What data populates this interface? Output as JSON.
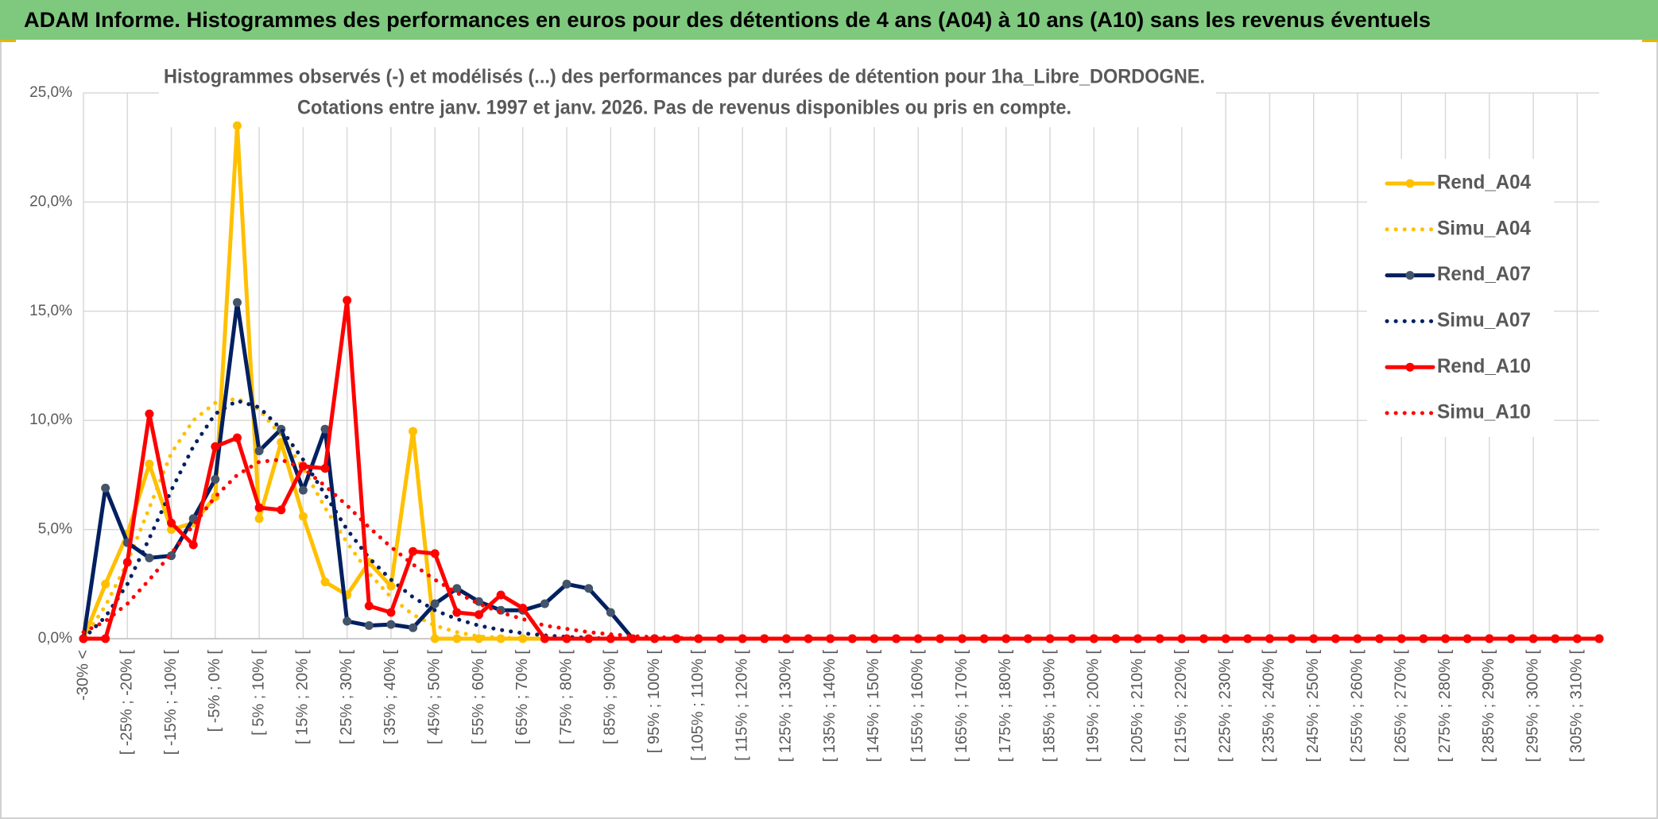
{
  "header": {
    "title": "ADAM Informe. Histogrammes des performances en euros pour des détentions de 4 ans (A04) à 10 ans (A10) sans les revenus éventuels"
  },
  "chart_data": {
    "type": "line",
    "title": "Histogrammes observés (-) et modélisés (...) des performances par durées de détention pour 1ha_Libre_DORDOGNE.",
    "subtitle": "Cotations entre janv. 1997 et janv. 2026. Pas de revenus disponibles ou pris en compte.",
    "categories": [
      "-30% <",
      null,
      "[ -25% ; -20% [",
      null,
      "[ -15% ; -10% [",
      null,
      "[ -5% ; 0% [",
      null,
      "[ 5% ; 10% [",
      null,
      "[ 15% ; 20% [",
      null,
      "[ 25% ; 30% [",
      null,
      "[ 35% ; 40% [",
      null,
      "[ 45% ; 50% [",
      null,
      "[ 55% ; 60% [",
      null,
      "[ 65% ; 70% [",
      null,
      "[ 75% ; 80% [",
      null,
      "[ 85% ; 90% [",
      null,
      "[ 95% ; 100% [",
      null,
      "[ 105% ; 110% [",
      null,
      "[ 115% ; 120% [",
      null,
      "[ 125% ; 130% [",
      null,
      "[ 135% ; 140% [",
      null,
      "[ 145% ; 150% [",
      null,
      "[ 155% ; 160% [",
      null,
      "[ 165% ; 170% [",
      null,
      "[ 175% ; 180% [",
      null,
      "[ 185% ; 190% [",
      null,
      "[ 195% ; 200% [",
      null,
      "[ 205% ; 210% [",
      null,
      "[ 215% ; 220% [",
      null,
      "[ 225% ; 230% [",
      null,
      "[ 235% ; 240% [",
      null,
      "[ 245% ; 250% [",
      null,
      "[ 255% ; 260% [",
      null,
      "[ 265% ; 270% [",
      null,
      "[ 275% ; 280% [",
      null,
      "[ 285% ; 290% [",
      null,
      "[ 295% ; 300% [",
      null,
      "[ 305% ; 310% [",
      null
    ],
    "series": [
      {
        "name": "Rend_A04",
        "color": "#ffc000",
        "style": "solid",
        "values": [
          0,
          2.5,
          4.8,
          8.0,
          5.0,
          5.3,
          6.5,
          23.5,
          5.5,
          9.0,
          5.6,
          2.6,
          2.0,
          3.5,
          2.4,
          9.5,
          0,
          0,
          0,
          0,
          0,
          0,
          0,
          0,
          0,
          0,
          0,
          0,
          0,
          0,
          0,
          0,
          0,
          0,
          0,
          0,
          0,
          0,
          0,
          0,
          0,
          0,
          0,
          0,
          0,
          0,
          0,
          0,
          0,
          0,
          0,
          0,
          0,
          0,
          0,
          0,
          0,
          0,
          0,
          0,
          0,
          0,
          0,
          0,
          0,
          0,
          0,
          0,
          0,
          0
        ]
      },
      {
        "name": "Simu_A04",
        "color": "#ffc000",
        "style": "dotted",
        "values": [
          0,
          1.5,
          3.5,
          6,
          8.5,
          10,
          10.8,
          11,
          10.5,
          9.3,
          7.8,
          6,
          4.4,
          3,
          1.9,
          1.1,
          0.6,
          0.3,
          0.1,
          0.05,
          0,
          0,
          0,
          0,
          0,
          0,
          0,
          0,
          0,
          0,
          0,
          0,
          0,
          0,
          0,
          0,
          0,
          0,
          0,
          0,
          0,
          0,
          0,
          0,
          0,
          0,
          0,
          0,
          0,
          0,
          0,
          0,
          0,
          0,
          0,
          0,
          0,
          0,
          0,
          0,
          0,
          0,
          0,
          0,
          0,
          0,
          0,
          0,
          0,
          0
        ]
      },
      {
        "name": "Rend_A07",
        "color": "#002060",
        "style": "solid",
        "values": [
          0,
          6.9,
          4.4,
          3.7,
          3.8,
          5.5,
          7.3,
          15.4,
          8.6,
          9.6,
          6.8,
          9.6,
          0.8,
          0.6,
          0.65,
          0.5,
          1.6,
          2.3,
          1.7,
          1.3,
          1.3,
          1.6,
          2.5,
          2.3,
          1.2,
          0,
          0,
          0,
          0,
          0,
          0,
          0,
          0,
          0,
          0,
          0,
          0,
          0,
          0,
          0,
          0,
          0,
          0,
          0,
          0,
          0,
          0,
          0,
          0,
          0,
          0,
          0,
          0,
          0,
          0,
          0,
          0,
          0,
          0,
          0,
          0,
          0,
          0,
          0,
          0,
          0,
          0,
          0,
          0,
          0
        ]
      },
      {
        "name": "Simu_A07",
        "color": "#002060",
        "style": "dotted",
        "values": [
          0,
          1,
          2.5,
          4.6,
          6.8,
          8.8,
          10.3,
          10.9,
          10.6,
          9.6,
          8.2,
          6.6,
          5,
          3.7,
          2.7,
          1.9,
          1.3,
          0.9,
          0.6,
          0.4,
          0.25,
          0.15,
          0.08,
          0.04,
          0,
          0,
          0,
          0,
          0,
          0,
          0,
          0,
          0,
          0,
          0,
          0,
          0,
          0,
          0,
          0,
          0,
          0,
          0,
          0,
          0,
          0,
          0,
          0,
          0,
          0,
          0,
          0,
          0,
          0,
          0,
          0,
          0,
          0,
          0,
          0,
          0,
          0,
          0,
          0,
          0,
          0,
          0,
          0,
          0,
          0
        ]
      },
      {
        "name": "Rend_A10",
        "color": "#ff0000",
        "style": "solid",
        "values": [
          0,
          0,
          3.5,
          10.3,
          5.3,
          4.3,
          8.8,
          9.2,
          6.0,
          5.9,
          7.9,
          7.8,
          15.5,
          1.5,
          1.2,
          4.0,
          3.9,
          1.2,
          1.1,
          2.0,
          1.4,
          0,
          0,
          0,
          0,
          0,
          0,
          0,
          0,
          0,
          0,
          0,
          0,
          0,
          0,
          0,
          0,
          0,
          0,
          0,
          0,
          0,
          0,
          0,
          0,
          0,
          0,
          0,
          0,
          0,
          0,
          0,
          0,
          0,
          0,
          0,
          0,
          0,
          0,
          0,
          0,
          0,
          0,
          0,
          0,
          0,
          0,
          0,
          0,
          0
        ]
      },
      {
        "name": "Simu_A10",
        "color": "#ff0000",
        "style": "dotted",
        "values": [
          0.3,
          0.8,
          1.6,
          2.7,
          3.9,
          5.2,
          6.5,
          7.5,
          8.1,
          8.2,
          7.8,
          7.0,
          6.1,
          5.1,
          4.2,
          3.4,
          2.7,
          2.1,
          1.6,
          1.2,
          0.9,
          0.6,
          0.45,
          0.3,
          0.2,
          0.12,
          0.07,
          0.04,
          0,
          0,
          0,
          0,
          0,
          0,
          0,
          0,
          0,
          0,
          0,
          0,
          0,
          0,
          0,
          0,
          0,
          0,
          0,
          0,
          0,
          0,
          0,
          0,
          0,
          0,
          0,
          0,
          0,
          0,
          0,
          0,
          0,
          0,
          0,
          0,
          0,
          0,
          0,
          0,
          0,
          0
        ]
      }
    ],
    "ylim": [
      0,
      25
    ],
    "yticks": [
      {
        "value": 0,
        "label": "0,0%"
      },
      {
        "value": 5,
        "label": "5,0%"
      },
      {
        "value": 10,
        "label": "10,0%"
      },
      {
        "value": 15,
        "label": "15,0%"
      },
      {
        "value": 20,
        "label": "20,0%"
      },
      {
        "value": 25,
        "label": "25,0%"
      }
    ],
    "grid": true,
    "legend": "right"
  }
}
